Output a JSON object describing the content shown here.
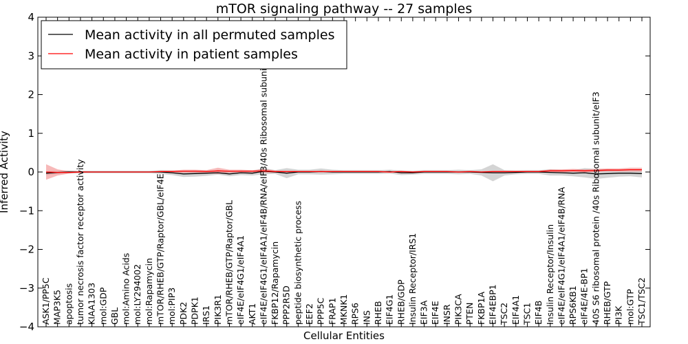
{
  "chart_data": {
    "type": "line",
    "title": "mTOR signaling pathway -- 27 samples",
    "xlabel": "Cellular Entities",
    "ylabel": "Inferred Activity",
    "ylim": [
      -4,
      4
    ],
    "yticks": [
      -4,
      -3,
      -2,
      -1,
      0,
      1,
      2,
      3,
      4
    ],
    "ytick_labels": [
      "−4",
      "−3",
      "−2",
      "−1",
      "0",
      "1",
      "2",
      "3",
      "4"
    ],
    "categories": [
      "ASK1/PP5C",
      "MAP3K5",
      "apoptosis",
      "tumor necrosis factor receptor activity",
      "KIAA1303",
      "mol:GDP",
      "GBL",
      "mol:Amino Acids",
      "mol:LY294002",
      "mol:Rapamycin",
      "mTOR/RHEB/GTP/Raptor/GBL/eIF4E",
      "mol:PIP3",
      "PDK2",
      "PDPK1",
      "IRS1",
      "PIK3R1",
      "mTOR/RHEB/GTP/Raptor/GBL",
      "eIF4E/eIF4G1/eIF4A1",
      "AKT1",
      "eIF4E/eIF4G1/eIF4A1/eIF4B/RNA/eIF3/40s Ribosomal subunit",
      "FKBP12/Rapamycin",
      "PPP2R5D",
      "peptide biosynthetic process",
      "EEF2",
      "PPP5C",
      "FRAP1",
      "MKNK1",
      "RPS6",
      "INS",
      "RHEB",
      "EIF4G1",
      "RHEB/GDP",
      "Insulin Receptor/IRS1",
      "EIF3A",
      "EIF4E",
      "INSR",
      "PIK3CA",
      "PTEN",
      "FKBP1A",
      "EIF4EBP1",
      "TSC2",
      "EIF4A1",
      "TSC1",
      "EIF4B",
      "Insulin Receptor/Insulin",
      "eIF4E/eIF4G1/eIF4A1/eIF4B/RNA",
      "RPS6KB1",
      "eIF4E/4E-BP1",
      "40S S6 ribosomal protein /40s Ribosomal subunit/eIF3",
      "RHEB/GTP",
      "PI3K",
      "mol:GTP",
      "TSC1/TSC2"
    ],
    "series": [
      {
        "name": "Mean activity in all permuted samples",
        "color": "#000000",
        "band_color": "#b0b0b0",
        "values": [
          -0.03,
          -0.01,
          0,
          0,
          0,
          0,
          0,
          0,
          0,
          0,
          0,
          -0.02,
          -0.05,
          -0.04,
          -0.03,
          -0.02,
          -0.05,
          -0.02,
          -0.03,
          0.02,
          0,
          -0.03,
          0,
          0,
          0.01,
          0,
          0,
          0,
          0,
          0,
          0.01,
          -0.02,
          -0.02,
          0,
          0,
          0,
          0,
          0,
          -0.01,
          -0.02,
          -0.02,
          -0.01,
          0,
          0,
          -0.01,
          -0.02,
          -0.03,
          -0.02,
          -0.05,
          -0.04,
          -0.03,
          -0.03,
          -0.04
        ],
        "band": [
          0.05,
          0.04,
          0.04,
          0.03,
          0.03,
          0.03,
          0.03,
          0.03,
          0.03,
          0.03,
          0.05,
          0.06,
          0.08,
          0.08,
          0.07,
          0.05,
          0.06,
          0.06,
          0.06,
          0.08,
          0.05,
          0.13,
          0.06,
          0.06,
          0.08,
          0.06,
          0.05,
          0.05,
          0.05,
          0.05,
          0.05,
          0.06,
          0.05,
          0.05,
          0.05,
          0.05,
          0.06,
          0.05,
          0.08,
          0.22,
          0.07,
          0.05,
          0.05,
          0.05,
          0.08,
          0.07,
          0.08,
          0.12,
          0.13,
          0.11,
          0.09,
          0.08,
          0.1
        ]
      },
      {
        "name": "Mean activity in patient samples",
        "color": "#ff0000",
        "band_color": "#f08080",
        "values": [
          0,
          -0.01,
          -0.01,
          0,
          0,
          0,
          0,
          0,
          0,
          0,
          0.01,
          0.01,
          0.02,
          0.02,
          0.01,
          0.03,
          0.02,
          0.02,
          0.02,
          0.03,
          0.01,
          0.01,
          0.01,
          0.01,
          0.01,
          0.01,
          0.01,
          0.01,
          0.01,
          0.01,
          0,
          0.01,
          0,
          0.01,
          0.01,
          0.01,
          0,
          0.01,
          0,
          0.01,
          0.01,
          0.01,
          0.01,
          0.01,
          0.03,
          0.03,
          0.04,
          0.03,
          0.04,
          0.05,
          0.05,
          0.06,
          0.06
        ],
        "band": [
          0.2,
          0.08,
          0.03,
          0.02,
          0.01,
          0.01,
          0.01,
          0.01,
          0.01,
          0.01,
          0.02,
          0.03,
          0.04,
          0.04,
          0.04,
          0.08,
          0.04,
          0.04,
          0.03,
          0.05,
          0.03,
          0.02,
          0.02,
          0.02,
          0.02,
          0.02,
          0.02,
          0.02,
          0.02,
          0.02,
          0.02,
          0.02,
          0.02,
          0.02,
          0.02,
          0.02,
          0.02,
          0.02,
          0.02,
          0.02,
          0.02,
          0.02,
          0.02,
          0.02,
          0.04,
          0.04,
          0.04,
          0.04,
          0.04,
          0.04,
          0.04,
          0.05,
          0.05
        ]
      }
    ],
    "legend": {
      "position": "top-left",
      "entries": [
        "Mean activity in all permuted samples",
        "Mean activity in patient samples"
      ]
    },
    "grid": false
  }
}
